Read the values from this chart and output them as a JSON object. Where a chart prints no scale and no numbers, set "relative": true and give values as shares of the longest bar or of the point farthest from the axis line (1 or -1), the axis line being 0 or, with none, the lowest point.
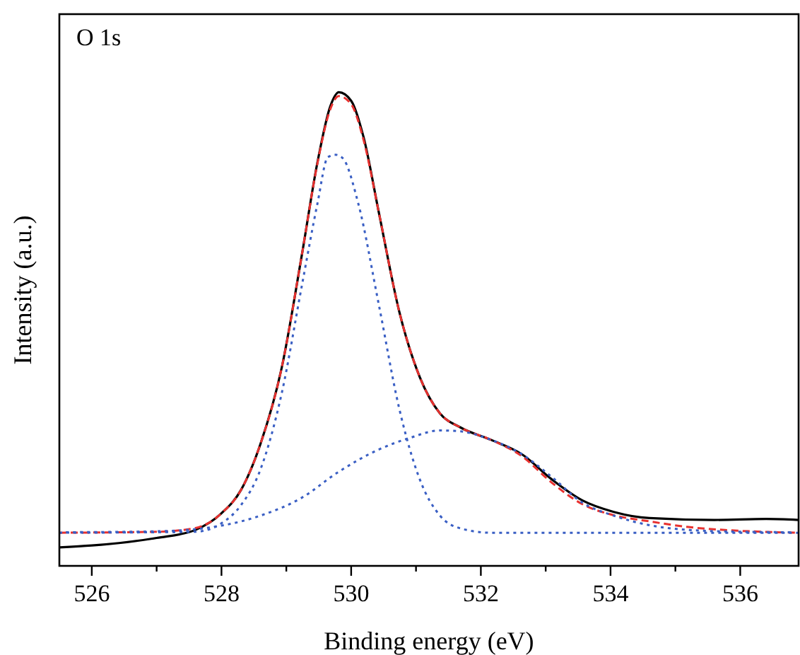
{
  "chart_data": {
    "type": "line",
    "relative": true,
    "xlabel": "Binding energy (eV)",
    "ylabel": "Intensity (a.u.)",
    "annotations": [
      "O 1s"
    ],
    "xlim": [
      525.5,
      536.9
    ],
    "xticks": [
      526,
      {
        "value": 527,
        "label": null
      },
      528,
      {
        "value": 529,
        "label": null
      },
      530,
      {
        "value": 531,
        "label": null
      },
      532,
      {
        "value": 533,
        "label": null
      },
      534,
      {
        "value": 535,
        "label": null
      },
      536
    ],
    "tick_labels": "x",
    "grid": false,
    "marker": "none",
    "series": [
      {
        "color": "#000000",
        "line_style": "solid",
        "x": [
          525.5,
          526,
          527,
          527.6,
          528,
          528.3,
          528.6,
          528.93,
          529.24,
          529.48,
          529.68,
          529.81,
          530,
          530.19,
          530.43,
          530.74,
          531.06,
          531.37,
          531.69,
          532.16,
          532.63,
          533.1,
          533.57,
          534.05,
          534.6,
          535.6,
          536.4,
          536.9
        ],
        "values": [
          0.039,
          0.043,
          0.059,
          0.076,
          0.111,
          0.16,
          0.257,
          0.419,
          0.657,
          0.852,
          0.971,
          1.0,
          0.982,
          0.906,
          0.744,
          0.538,
          0.398,
          0.322,
          0.292,
          0.266,
          0.236,
          0.182,
          0.138,
          0.114,
          0.101,
          0.097,
          0.099,
          0.097
        ]
      },
      {
        "color": "#e8312f",
        "line_style": "dashed",
        "x": [
          525.5,
          527,
          527.6,
          528,
          528.3,
          528.6,
          528.93,
          529.24,
          529.48,
          529.68,
          529.81,
          530,
          530.19,
          530.43,
          530.74,
          531.06,
          531.37,
          531.69,
          532.16,
          532.63,
          533.1,
          533.57,
          534.05,
          534.6,
          535.2,
          536,
          536.9
        ],
        "values": [
          0.07,
          0.072,
          0.08,
          0.111,
          0.16,
          0.257,
          0.419,
          0.657,
          0.85,
          0.965,
          0.992,
          0.975,
          0.9,
          0.744,
          0.538,
          0.398,
          0.322,
          0.292,
          0.266,
          0.232,
          0.175,
          0.13,
          0.107,
          0.094,
          0.082,
          0.074,
          0.07
        ]
      },
      {
        "color": "#3a5fc4",
        "line_style": "dotted",
        "x": [
          525.5,
          527.6,
          528,
          528.3,
          528.6,
          528.93,
          529.24,
          529.48,
          529.64,
          529.76,
          529.87,
          530.11,
          530.43,
          530.74,
          531.06,
          531.37,
          531.69,
          532.16,
          536.9
        ],
        "values": [
          0.07,
          0.072,
          0.09,
          0.128,
          0.203,
          0.365,
          0.592,
          0.765,
          0.863,
          0.868,
          0.861,
          0.765,
          0.549,
          0.333,
          0.182,
          0.106,
          0.079,
          0.07,
          0.07
        ]
      },
      {
        "color": "#3a5fc4",
        "line_style": "dotted",
        "x": [
          525.6,
          527,
          528,
          528.6,
          529.24,
          529.8,
          530.43,
          530.9,
          531.37,
          531.69,
          532.16,
          532.63,
          533.1,
          533.57,
          534.05,
          534.6,
          535.2,
          536,
          536.8
        ],
        "values": [
          0.071,
          0.073,
          0.085,
          0.106,
          0.144,
          0.198,
          0.246,
          0.27,
          0.286,
          0.284,
          0.266,
          0.236,
          0.187,
          0.133,
          0.106,
          0.086,
          0.076,
          0.072,
          0.071
        ]
      }
    ]
  }
}
